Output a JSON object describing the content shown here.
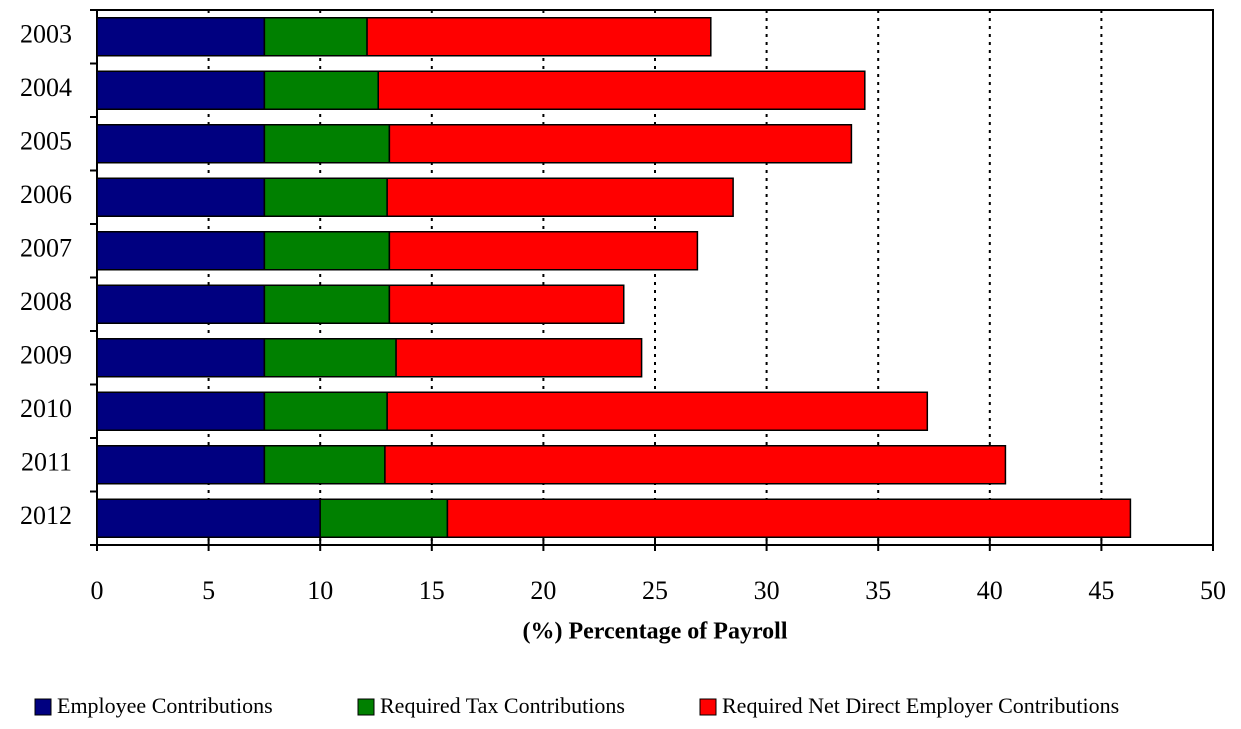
{
  "chart_data": {
    "type": "bar",
    "orientation": "horizontal",
    "stacked": true,
    "xlabel": "(%) Percentage of Payroll",
    "categories": [
      "2003",
      "2004",
      "2005",
      "2006",
      "2007",
      "2008",
      "2009",
      "2010",
      "2011",
      "2012"
    ],
    "series": [
      {
        "name": "Employee Contributions",
        "color": "#000080",
        "values": [
          7.5,
          7.5,
          7.5,
          7.5,
          7.5,
          7.5,
          7.5,
          7.5,
          7.5,
          10.0
        ]
      },
      {
        "name": "Required Tax Contributions",
        "color": "#008000",
        "values": [
          4.6,
          5.1,
          5.6,
          5.5,
          5.6,
          5.6,
          5.9,
          5.5,
          5.4,
          5.7
        ]
      },
      {
        "name": "Required Net Direct Employer Contributions",
        "color": "#ff0000",
        "values": [
          15.4,
          21.8,
          20.7,
          15.5,
          13.8,
          10.5,
          11.0,
          24.2,
          27.8,
          30.6
        ]
      }
    ],
    "xlim": [
      0,
      50
    ],
    "xticks": [
      0,
      5,
      10,
      15,
      20,
      25,
      30,
      35,
      40,
      45,
      50
    ],
    "grid": true,
    "legend": "bottom"
  }
}
